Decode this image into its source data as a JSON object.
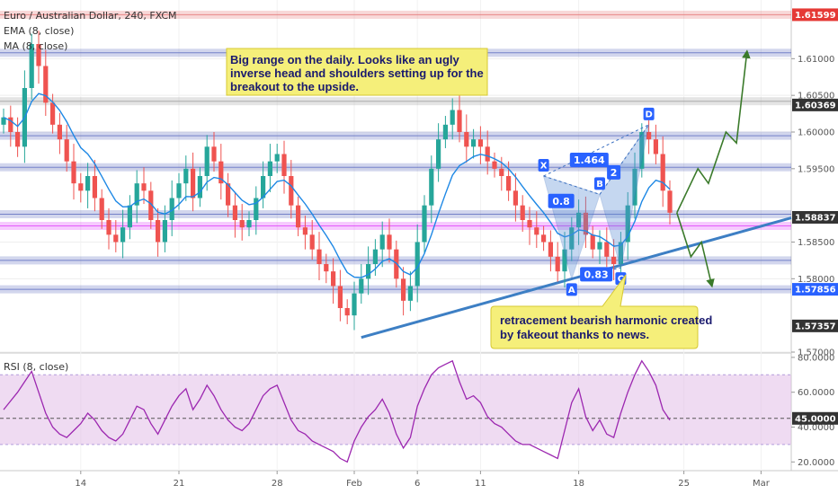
{
  "chart_data": {
    "type": "candlestick",
    "title": "Euro / Australian Dollar, 240, FXCM",
    "indicators": [
      {
        "name": "EMA (8, close)"
      },
      {
        "name": "MA (8, close)"
      }
    ],
    "price_axis": {
      "ylim": [
        1.57,
        1.618
      ],
      "ticks": [
        {
          "value": 1.61,
          "label": "1.61000"
        },
        {
          "value": 1.605,
          "label": "1.60500"
        },
        {
          "value": 1.6,
          "label": "1.60000"
        },
        {
          "value": 1.595,
          "label": "1.59500"
        },
        {
          "value": 1.585,
          "label": "1.58500"
        },
        {
          "value": 1.58,
          "label": "1.58000"
        },
        {
          "value": 1.57,
          "label": "1.57000"
        }
      ]
    },
    "price_badges": [
      {
        "value": 1.61599,
        "label": "1.61599",
        "color": "#e53935"
      },
      {
        "value": 1.60369,
        "label": "1.60369",
        "color": "#333333"
      },
      {
        "value": 1.58837,
        "label": "1.58837",
        "color": "#333333"
      },
      {
        "value": 1.57856,
        "label": "1.57856",
        "color": "#2962ff"
      },
      {
        "value": 1.57357,
        "label": "1.57357",
        "color": "#333333"
      }
    ],
    "time_axis": {
      "labels": [
        {
          "label": "14",
          "bar": 11
        },
        {
          "label": "21",
          "bar": 25
        },
        {
          "label": "28",
          "bar": 39
        },
        {
          "label": "Feb",
          "bar": 50
        },
        {
          "label": "6",
          "bar": 59
        },
        {
          "label": "11",
          "bar": 68
        },
        {
          "label": "18",
          "bar": 82
        },
        {
          "label": "25",
          "bar": 97
        },
        {
          "label": "Mar",
          "bar": 108
        }
      ]
    },
    "horizontal_levels": [
      {
        "value": 1.61599,
        "color": "#e57373"
      },
      {
        "value": 1.6108,
        "color": "#5c6bc0"
      },
      {
        "value": 1.6042,
        "color": "#9e9e9e"
      },
      {
        "value": 1.5995,
        "color": "#5c6bc0"
      },
      {
        "value": 1.5952,
        "color": "#5c6bc0"
      },
      {
        "value": 1.5888,
        "color": "#5c6bc0"
      },
      {
        "value": 1.5872,
        "color": "#e040fb"
      },
      {
        "value": 1.5825,
        "color": "#5c6bc0"
      },
      {
        "value": 1.57856,
        "color": "#5c6bc0"
      }
    ],
    "close": [
      1.602,
      1.6,
      1.598,
      1.606,
      1.612,
      1.609,
      1.604,
      1.601,
      1.599,
      1.596,
      1.593,
      1.592,
      1.594,
      1.591,
      1.588,
      1.586,
      1.585,
      1.587,
      1.59,
      1.593,
      1.592,
      1.588,
      1.585,
      1.588,
      1.591,
      1.593,
      1.595,
      1.591,
      1.594,
      1.598,
      1.596,
      1.593,
      1.59,
      1.588,
      1.587,
      1.588,
      1.591,
      1.594,
      1.596,
      1.597,
      1.594,
      1.59,
      1.587,
      1.586,
      1.584,
      1.582,
      1.581,
      1.579,
      1.576,
      1.575,
      1.578,
      1.58,
      1.582,
      1.584,
      1.586,
      1.584,
      1.58,
      1.577,
      1.579,
      1.585,
      1.59,
      1.595,
      1.599,
      1.601,
      1.603,
      1.6,
      1.598,
      1.599,
      1.598,
      1.596,
      1.595,
      1.594,
      1.592,
      1.59,
      1.588,
      1.587,
      1.586,
      1.585,
      1.583,
      1.581,
      1.584,
      1.587,
      1.589,
      1.586,
      1.584,
      1.585,
      1.583,
      1.582,
      1.585,
      1.59,
      1.595,
      1.6,
      1.599,
      1.597,
      1.592,
      1.589
    ],
    "annotations": {
      "note_top": "Big range on the daily. Looks like an ugly inverse head and shoulders setting up for the breakout to the upside.",
      "note_top_lines": [
        "Big range on the daily. Looks like an ugly",
        "inverse head and shoulders setting up for the",
        "breakout to the upside."
      ],
      "note_bottom": "retracement bearish harmonic created by fakeout thanks to news.",
      "note_bottom_lines": [
        "retracement bearish harmonic created",
        "by fakeout thanks to news."
      ],
      "pattern_points": [
        {
          "label": "X",
          "bar": 77,
          "value": 1.594
        },
        {
          "label": "A",
          "bar": 81,
          "value": 1.58
        },
        {
          "label": "B",
          "bar": 85,
          "value": 1.5915
        },
        {
          "label": "C",
          "bar": 88,
          "value": 1.5815
        },
        {
          "label": "D",
          "bar": 92,
          "value": 1.601
        }
      ],
      "ratios": [
        {
          "label": "0.8",
          "bar": 79.5,
          "value": 1.5906
        },
        {
          "label": "0.83",
          "bar": 84.5,
          "value": 1.5806
        },
        {
          "label": "1.464",
          "bar": 83.5,
          "value": 1.5962
        },
        {
          "label": "2",
          "bar": 87,
          "value": 1.5945
        }
      ]
    },
    "rsi": {
      "name": "RSI (8, close)",
      "ylim": [
        15,
        82
      ],
      "current_label": "45.0000",
      "current_value": 45,
      "band": [
        30,
        70
      ],
      "ticks": [
        {
          "value": 80,
          "label": "80.0000"
        },
        {
          "value": 60,
          "label": "60.0000"
        },
        {
          "value": 40,
          "label": "40.0000"
        },
        {
          "value": 20,
          "label": "20.0000"
        }
      ],
      "values": [
        50,
        55,
        60,
        66,
        72,
        60,
        48,
        40,
        36,
        34,
        38,
        42,
        48,
        44,
        38,
        34,
        32,
        36,
        44,
        52,
        50,
        42,
        36,
        44,
        52,
        58,
        62,
        50,
        56,
        64,
        58,
        50,
        44,
        40,
        38,
        42,
        50,
        58,
        62,
        64,
        54,
        44,
        38,
        36,
        32,
        30,
        28,
        26,
        22,
        20,
        32,
        40,
        46,
        50,
        56,
        48,
        36,
        28,
        34,
        52,
        62,
        70,
        74,
        76,
        78,
        66,
        56,
        58,
        54,
        46,
        42,
        40,
        36,
        32,
        30,
        30,
        28,
        26,
        24,
        22,
        38,
        54,
        62,
        46,
        38,
        44,
        36,
        34,
        48,
        60,
        70,
        78,
        72,
        64,
        50,
        44
      ]
    }
  }
}
